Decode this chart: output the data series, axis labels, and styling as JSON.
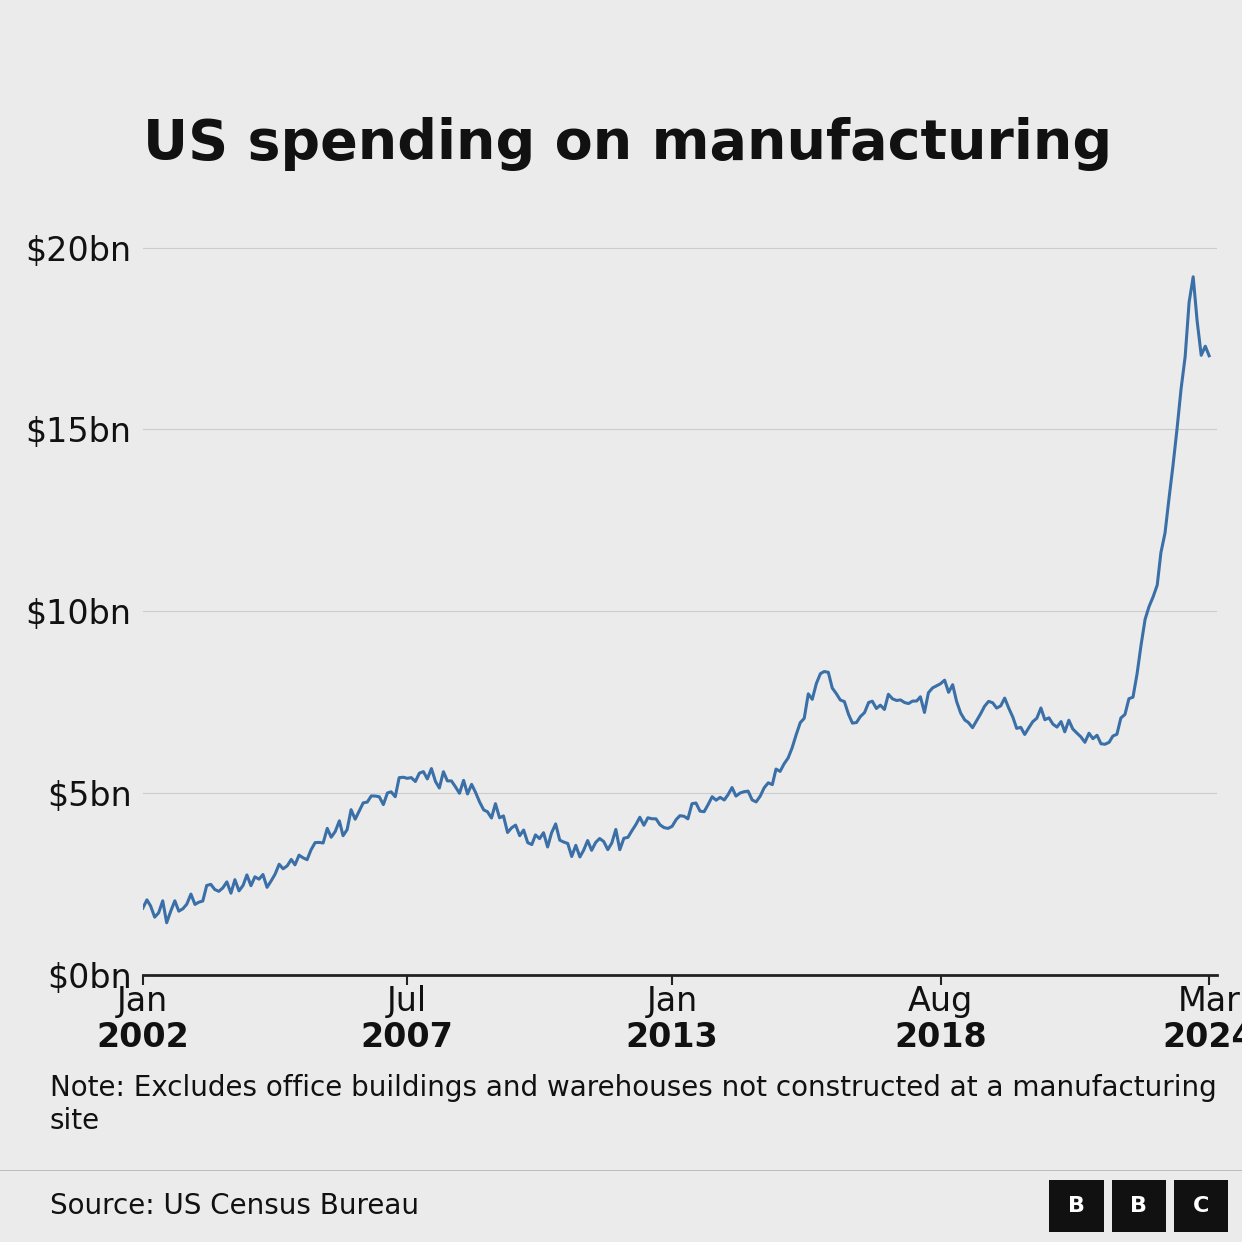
{
  "title": "US spending on manufacturing",
  "note": "Note: Excludes office buildings and warehouses not constructed at a manufacturing\nsite",
  "source": "Source: US Census Bureau",
  "line_color": "#3a6fa8",
  "background_color": "#ebebeb",
  "plot_bg_color": "#ebebeb",
  "ytick_labels": [
    "$0bn",
    "$5bn",
    "$10bn",
    "$15bn",
    "$20bn"
  ],
  "ytick_values": [
    0,
    5,
    10,
    15,
    20
  ],
  "ylim": [
    0,
    21
  ],
  "title_fontsize": 40,
  "label_fontsize": 24,
  "note_fontsize": 20,
  "source_fontsize": 20,
  "line_width": 2.2,
  "grid_color": "#cccccc",
  "spine_color": "#222222",
  "source_bar_color": "#d0d0d0",
  "text_color": "#111111"
}
